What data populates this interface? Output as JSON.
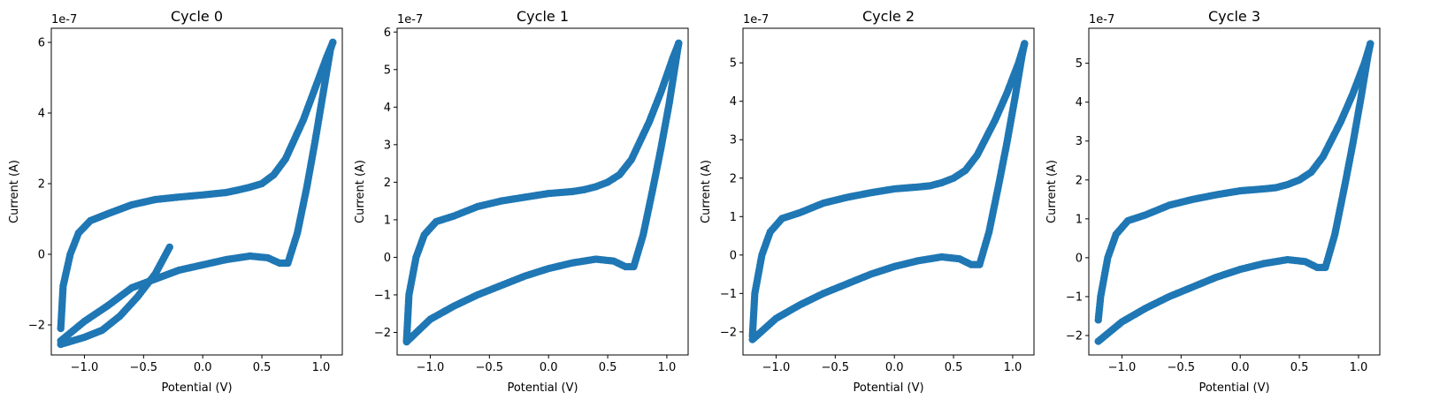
{
  "chart_data": [
    {
      "type": "scatter",
      "title": "Cycle 0",
      "xlabel": "Potential (V)",
      "ylabel": "Current (A)",
      "y_offset_label": "1e-7",
      "marker_color": "#1f77b4",
      "xlim": [
        -1.28,
        1.18
      ],
      "ylim": [
        -2.85,
        6.4
      ],
      "xticks": [
        -1.0,
        -0.5,
        0.0,
        0.5,
        1.0
      ],
      "xtick_labels": [
        "−1.0",
        "−0.5",
        "0.0",
        "0.5",
        "1.0"
      ],
      "yticks": [
        -2,
        0,
        2,
        4,
        6
      ],
      "ytick_labels": [
        "−2",
        "0",
        "2",
        "4",
        "6"
      ],
      "series": [
        {
          "segments": [
            {
              "x": [
                -0.28,
                -0.4,
                -0.55,
                -0.7,
                -0.85,
                -1.0,
                -1.1,
                -1.2
              ],
              "y": [
                0.2,
                -0.55,
                -1.2,
                -1.75,
                -2.15,
                -2.35,
                -2.45,
                -2.55
              ]
            },
            {
              "x": [
                -1.2,
                -1.0,
                -0.8,
                -0.6,
                -0.4,
                -0.2,
                0.0,
                0.2,
                0.4,
                0.55,
                0.65,
                0.72,
                0.8,
                0.88,
                0.95,
                1.02,
                1.08,
                1.1
              ],
              "y": [
                -2.45,
                -1.9,
                -1.45,
                -0.95,
                -0.7,
                -0.45,
                -0.3,
                -0.15,
                -0.05,
                -0.1,
                -0.25,
                -0.25,
                0.6,
                1.9,
                3.2,
                4.6,
                5.8,
                6.0
              ]
            },
            {
              "x": [
                1.1,
                1.05,
                0.95,
                0.85,
                0.7,
                0.6,
                0.5,
                0.4,
                0.3,
                0.2,
                0.0,
                -0.2,
                -0.4,
                -0.6,
                -0.8,
                -0.95,
                -1.05,
                -1.12,
                -1.18,
                -1.2
              ],
              "y": [
                6.0,
                5.6,
                4.7,
                3.8,
                2.7,
                2.25,
                2.0,
                1.9,
                1.82,
                1.75,
                1.68,
                1.62,
                1.55,
                1.4,
                1.15,
                0.95,
                0.6,
                0.0,
                -0.9,
                -2.1
              ]
            }
          ]
        }
      ]
    },
    {
      "type": "scatter",
      "title": "Cycle 1",
      "xlabel": "Potential (V)",
      "ylabel": "Current (A)",
      "y_offset_label": "1e-7",
      "marker_color": "#1f77b4",
      "xlim": [
        -1.28,
        1.18
      ],
      "ylim": [
        -2.6,
        6.1
      ],
      "xticks": [
        -1.0,
        -0.5,
        0.0,
        0.5,
        1.0
      ],
      "xtick_labels": [
        "−1.0",
        "−0.5",
        "0.0",
        "0.5",
        "1.0"
      ],
      "yticks": [
        -2,
        -1,
        0,
        1,
        2,
        3,
        4,
        5,
        6
      ],
      "ytick_labels": [
        "−2",
        "−1",
        "0",
        "1",
        "2",
        "3",
        "4",
        "5",
        "6"
      ],
      "series": [
        {
          "segments": [
            {
              "x": [
                -1.2,
                -1.0,
                -0.8,
                -0.6,
                -0.4,
                -0.2,
                0.0,
                0.2,
                0.4,
                0.55,
                0.65,
                0.72,
                0.8,
                0.88,
                0.95,
                1.02,
                1.08,
                1.1
              ],
              "y": [
                -2.25,
                -1.65,
                -1.3,
                -1.0,
                -0.75,
                -0.5,
                -0.3,
                -0.15,
                -0.05,
                -0.1,
                -0.25,
                -0.25,
                0.6,
                1.8,
                2.9,
                4.1,
                5.3,
                5.7
              ]
            },
            {
              "x": [
                1.1,
                1.05,
                0.95,
                0.85,
                0.7,
                0.6,
                0.5,
                0.4,
                0.3,
                0.2,
                0.0,
                -0.2,
                -0.4,
                -0.6,
                -0.8,
                -0.95,
                -1.05,
                -1.12,
                -1.18,
                -1.2
              ],
              "y": [
                5.7,
                5.3,
                4.4,
                3.6,
                2.6,
                2.2,
                2.0,
                1.88,
                1.8,
                1.75,
                1.7,
                1.6,
                1.5,
                1.35,
                1.1,
                0.95,
                0.6,
                0.0,
                -1.0,
                -2.2
              ]
            }
          ]
        }
      ]
    },
    {
      "type": "scatter",
      "title": "Cycle 2",
      "xlabel": "Potential (V)",
      "ylabel": "Current (A)",
      "y_offset_label": "1e-7",
      "marker_color": "#1f77b4",
      "xlim": [
        -1.28,
        1.18
      ],
      "ylim": [
        -2.6,
        5.9
      ],
      "xticks": [
        -1.0,
        -0.5,
        0.0,
        0.5,
        1.0
      ],
      "xtick_labels": [
        "−1.0",
        "−0.5",
        "0.0",
        "0.5",
        "1.0"
      ],
      "yticks": [
        -2,
        -1,
        0,
        1,
        2,
        3,
        4,
        5
      ],
      "ytick_labels": [
        "−2",
        "−1",
        "0",
        "1",
        "2",
        "3",
        "4",
        "5"
      ],
      "series": [
        {
          "segments": [
            {
              "x": [
                -1.2,
                -1.0,
                -0.8,
                -0.6,
                -0.4,
                -0.2,
                0.0,
                0.2,
                0.4,
                0.55,
                0.65,
                0.72,
                0.8,
                0.88,
                0.95,
                1.02,
                1.08,
                1.1
              ],
              "y": [
                -2.2,
                -1.65,
                -1.3,
                -1.0,
                -0.75,
                -0.5,
                -0.3,
                -0.15,
                -0.05,
                -0.1,
                -0.25,
                -0.25,
                0.6,
                1.8,
                2.9,
                4.1,
                5.2,
                5.5
              ]
            },
            {
              "x": [
                1.1,
                1.05,
                0.95,
                0.85,
                0.7,
                0.6,
                0.5,
                0.4,
                0.3,
                0.2,
                0.0,
                -0.2,
                -0.4,
                -0.6,
                -0.8,
                -0.95,
                -1.05,
                -1.12,
                -1.18,
                -1.2
              ],
              "y": [
                5.5,
                5.0,
                4.2,
                3.5,
                2.6,
                2.2,
                2.0,
                1.88,
                1.8,
                1.77,
                1.72,
                1.62,
                1.5,
                1.35,
                1.1,
                0.95,
                0.6,
                0.0,
                -1.0,
                -2.1
              ]
            }
          ]
        }
      ]
    },
    {
      "type": "scatter",
      "title": "Cycle 3",
      "xlabel": "Potential (V)",
      "ylabel": "Current (A)",
      "y_offset_label": "1e-7",
      "marker_color": "#1f77b4",
      "xlim": [
        -1.28,
        1.18
      ],
      "ylim": [
        -2.5,
        5.9
      ],
      "xticks": [
        -1.0,
        -0.5,
        0.0,
        0.5,
        1.0
      ],
      "xtick_labels": [
        "−1.0",
        "−0.5",
        "0.0",
        "0.5",
        "1.0"
      ],
      "yticks": [
        -2,
        -1,
        0,
        1,
        2,
        3,
        4,
        5
      ],
      "ytick_labels": [
        "−2",
        "−1",
        "0",
        "1",
        "2",
        "3",
        "4",
        "5"
      ],
      "series": [
        {
          "segments": [
            {
              "x": [
                -1.2,
                -1.0,
                -0.8,
                -0.6,
                -0.4,
                -0.2,
                0.0,
                0.2,
                0.4,
                0.55,
                0.65,
                0.72,
                0.8,
                0.88,
                0.95,
                1.02,
                1.08,
                1.1
              ],
              "y": [
                -2.15,
                -1.65,
                -1.3,
                -1.0,
                -0.75,
                -0.5,
                -0.3,
                -0.15,
                -0.05,
                -0.1,
                -0.25,
                -0.25,
                0.6,
                1.8,
                2.9,
                4.1,
                5.2,
                5.5
              ]
            },
            {
              "x": [
                1.1,
                1.05,
                0.95,
                0.85,
                0.7,
                0.6,
                0.5,
                0.4,
                0.3,
                0.2,
                0.0,
                -0.2,
                -0.4,
                -0.6,
                -0.8,
                -0.95,
                -1.05,
                -1.12,
                -1.18,
                -1.2
              ],
              "y": [
                5.5,
                5.0,
                4.2,
                3.5,
                2.6,
                2.2,
                2.0,
                1.88,
                1.8,
                1.77,
                1.72,
                1.62,
                1.5,
                1.35,
                1.1,
                0.95,
                0.6,
                0.0,
                -1.0,
                -1.6
              ]
            }
          ]
        }
      ]
    }
  ]
}
